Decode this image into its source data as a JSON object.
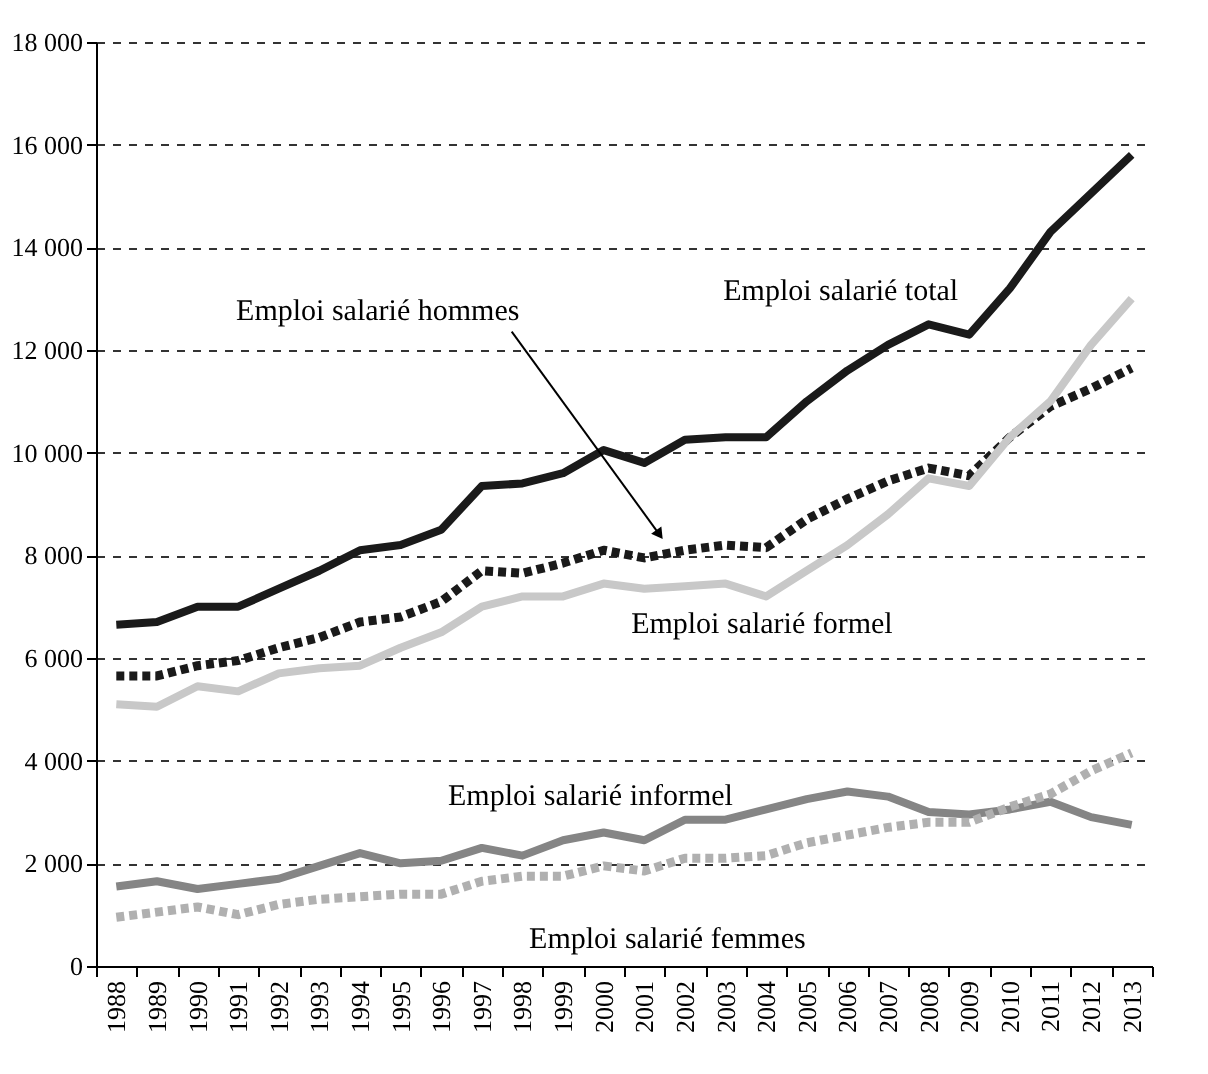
{
  "chart_data": {
    "type": "line",
    "categories": [
      "1988",
      "1989",
      "1990",
      "1991",
      "1992",
      "1993",
      "1994",
      "1995",
      "1996",
      "1997",
      "1998",
      "1999",
      "2000",
      "2001",
      "2002",
      "2003",
      "2004",
      "2005",
      "2006",
      "2007",
      "2008",
      "2009",
      "2010",
      "2011",
      "2012",
      "2013"
    ],
    "series": [
      {
        "name": "Emploi salarié total",
        "color": "#1a1a1a",
        "line_style": "solid",
        "values": [
          6650,
          6700,
          7000,
          7000,
          7350,
          7700,
          8100,
          8200,
          8500,
          9350,
          9400,
          9600,
          10050,
          9800,
          10250,
          10300,
          10300,
          11000,
          11600,
          12100,
          12500,
          12300,
          13200,
          14300,
          15050,
          15800
        ]
      },
      {
        "name": "Emploi salarié hommes",
        "color": "#1a1a1a",
        "line_style": "dotted",
        "values": [
          5650,
          5650,
          5850,
          5950,
          6200,
          6400,
          6700,
          6800,
          7100,
          7700,
          7650,
          7850,
          8100,
          7950,
          8100,
          8200,
          8150,
          8700,
          9100,
          9450,
          9700,
          9550,
          10300,
          10900,
          11250,
          11650
        ]
      },
      {
        "name": "Emploi salarié formel",
        "color": "#c8c8c8",
        "line_style": "solid",
        "values": [
          5100,
          5050,
          5450,
          5350,
          5700,
          5800,
          5850,
          6200,
          6500,
          7000,
          7200,
          7200,
          7450,
          7350,
          7400,
          7450,
          7200,
          7700,
          8200,
          8800,
          9500,
          9350,
          10300,
          11000,
          12100,
          13000
        ]
      },
      {
        "name": "Emploi salarié informel",
        "color": "#858585",
        "line_style": "solid",
        "values": [
          1550,
          1650,
          1500,
          1600,
          1700,
          1950,
          2200,
          2000,
          2050,
          2300,
          2150,
          2450,
          2600,
          2450,
          2850,
          2850,
          3050,
          3250,
          3400,
          3300,
          3000,
          2950,
          3050,
          3200,
          2900,
          2750
        ]
      },
      {
        "name": "Emploi salarié femmes",
        "color": "#b0b0b0",
        "line_style": "dotted",
        "values": [
          950,
          1050,
          1150,
          1000,
          1200,
          1300,
          1350,
          1400,
          1400,
          1650,
          1750,
          1750,
          1950,
          1850,
          2100,
          2100,
          2150,
          2400,
          2550,
          2700,
          2800,
          2800,
          3100,
          3350,
          3800,
          4150
        ]
      }
    ],
    "ylim": [
      0,
      18000
    ],
    "yticks": [
      0,
      {
        "value": 2000,
        "label": "2 000"
      },
      {
        "value": 4000,
        "label": "4 000"
      },
      {
        "value": 6000,
        "label": "6 000"
      },
      {
        "value": 8000,
        "label": "8 000"
      },
      {
        "value": 10000,
        "label": "10 000"
      },
      {
        "value": 12000,
        "label": "12 000"
      },
      {
        "value": 14000,
        "label": "14 000"
      },
      {
        "value": 16000,
        "label": "16 000"
      },
      {
        "value": 18000,
        "label": "18 000"
      }
    ],
    "grid": "y",
    "marker": "none"
  }
}
